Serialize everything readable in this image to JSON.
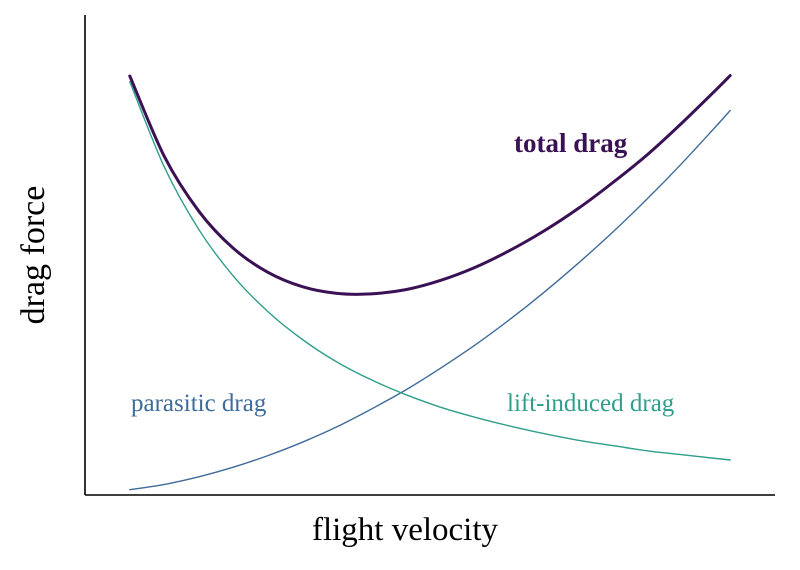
{
  "figure": {
    "background": "#ffffff",
    "axis_color": "#000000"
  },
  "chart_data": {
    "type": "line",
    "title": "",
    "xlabel": "flight velocity",
    "ylabel": "drag force",
    "x_axis": {
      "range": [
        0,
        1
      ],
      "ticks": "none"
    },
    "y_axis": {
      "range": [
        0,
        1
      ],
      "ticks": "none"
    },
    "grid": "off",
    "legend": "inline-annotations",
    "x": [
      0.065,
      0.115,
      0.165,
      0.215,
      0.265,
      0.315,
      0.365,
      0.415,
      0.465,
      0.515,
      0.565,
      0.615,
      0.665,
      0.715,
      0.765,
      0.815,
      0.865,
      0.915,
      0.935
    ],
    "series": [
      {
        "name": "total drag",
        "color": "#3a1155",
        "stroke_width": 3,
        "values": [
          0.873,
          0.705,
          0.591,
          0.514,
          0.464,
          0.434,
          0.42,
          0.419,
          0.428,
          0.447,
          0.474,
          0.509,
          0.55,
          0.597,
          0.651,
          0.709,
          0.775,
          0.845,
          0.874
        ]
      },
      {
        "name": "parasitic drag",
        "color": "#3f6b9a",
        "stroke_width": 1.4,
        "values": [
          0.011,
          0.022,
          0.038,
          0.058,
          0.082,
          0.11,
          0.142,
          0.179,
          0.219,
          0.264,
          0.312,
          0.365,
          0.422,
          0.483,
          0.548,
          0.617,
          0.691,
          0.769,
          0.801
        ]
      },
      {
        "name": "lift-induced drag",
        "color": "#2f9e8c",
        "stroke_width": 1.4,
        "values": [
          0.861,
          0.683,
          0.553,
          0.456,
          0.382,
          0.324,
          0.277,
          0.24,
          0.209,
          0.183,
          0.162,
          0.144,
          0.128,
          0.114,
          0.103,
          0.092,
          0.084,
          0.076,
          0.073
        ]
      }
    ]
  }
}
